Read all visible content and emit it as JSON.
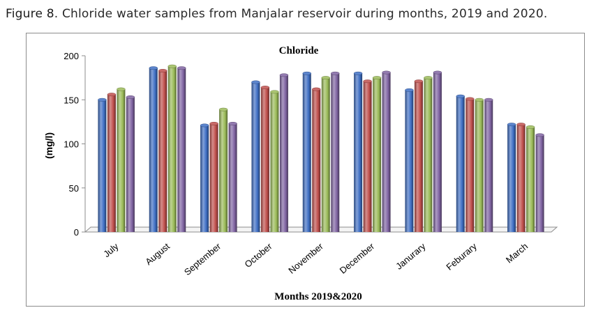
{
  "caption": {
    "figure_label": "Figure 8",
    "text": ". Chloride water samples from Manjalar reservoir during months, 2019 and 2020."
  },
  "chart_data": {
    "type": "bar",
    "title": "Chloride",
    "xlabel": "Months 2019&2020",
    "ylabel": "(mg/l)",
    "ylim": [
      0,
      200
    ],
    "yticks": [
      0,
      50,
      100,
      150,
      200
    ],
    "grid": false,
    "legend": "none",
    "categories": [
      "July",
      "August",
      "September",
      "October",
      "November",
      "December",
      "Janurary",
      "Feburary",
      "March"
    ],
    "series": [
      {
        "color": "#3f6fc4",
        "values": [
          150,
          186,
          121,
          170,
          180,
          180,
          161,
          154,
          122
        ]
      },
      {
        "color": "#c0504d",
        "values": [
          156,
          183,
          123,
          164,
          162,
          171,
          171,
          151,
          122
        ]
      },
      {
        "color": "#9bbb59",
        "values": [
          162,
          188,
          139,
          159,
          175,
          175,
          175,
          150,
          119
        ]
      },
      {
        "color": "#8064a2",
        "values": [
          153,
          186,
          123,
          178,
          180,
          181,
          181,
          150,
          110
        ]
      }
    ]
  }
}
